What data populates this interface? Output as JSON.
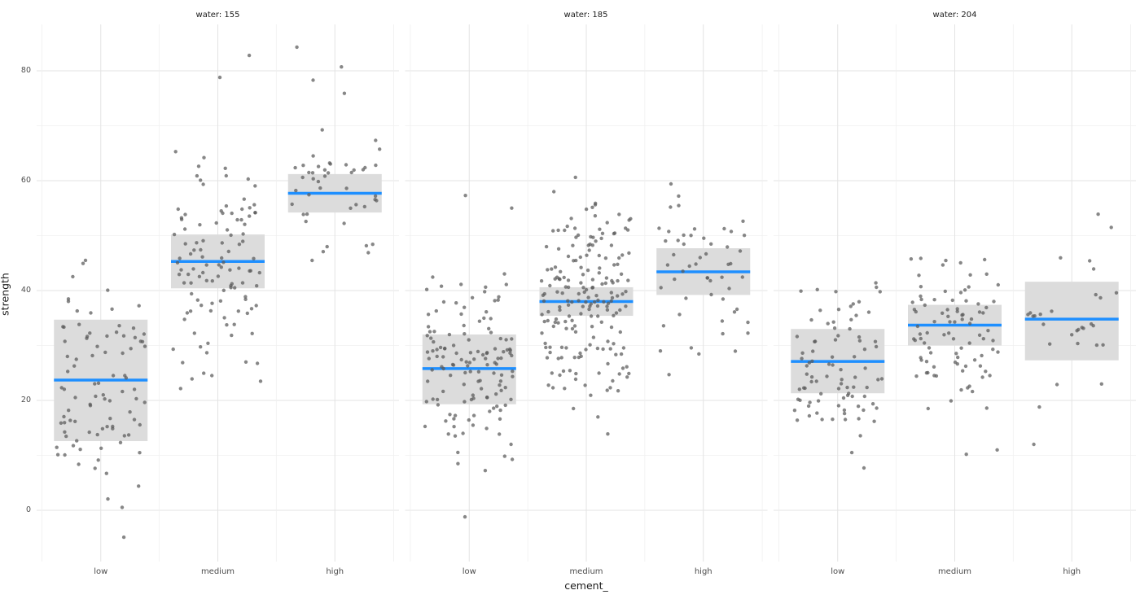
{
  "chart_data": {
    "type": "scatter",
    "subtype": "jittered points with crossbar summary bands, faceted",
    "title": "",
    "facet_variable": "water",
    "x": {
      "label": "cement_",
      "categories": [
        "low",
        "medium",
        "high"
      ]
    },
    "y": {
      "label": "strength",
      "ticks": [
        0,
        20,
        40,
        60,
        80
      ],
      "minor_ticks": [
        10,
        30,
        50,
        70
      ],
      "range": [
        -9.33,
        88.44
      ]
    },
    "grid": "major and minor, light gray on white",
    "legend": "none",
    "colors": {
      "background": "#ffffff",
      "grid_major": "#e3e3e3",
      "grid_minor": "#f0f0f0",
      "band_fill": "#dcdcdc",
      "mean_line": "#1e8fff",
      "point": "#595959",
      "tick_text": "#4d4d4d",
      "title_text": "#1a1a1a"
    },
    "facets": [
      {
        "label": "water: 155",
        "groups": [
          {
            "category": "low",
            "n": 88,
            "mean": 23.7,
            "sd": 10.5,
            "clip": [
              -5.2,
              45.7
            ],
            "extras": [
              -4.9,
              4.4,
              45.5
            ],
            "band": {
              "lower": 12.6,
              "mid": 23.7,
              "upper": 34.7
            },
            "seed": 11
          },
          {
            "category": "medium",
            "n": 110,
            "mean": 45.3,
            "sd": 10.0,
            "clip": [
              21.5,
              66.0
            ],
            "extras": [
              82.8,
              78.8
            ],
            "band": {
              "lower": 40.4,
              "mid": 45.3,
              "upper": 50.2
            },
            "seed": 22
          },
          {
            "category": "high",
            "n": 44,
            "mean": 57.7,
            "sd": 7.0,
            "clip": [
              45.0,
              70.5
            ],
            "extras": [
              84.3,
              80.7,
              78.3,
              75.9
            ],
            "band": {
              "lower": 54.2,
              "mid": 57.7,
              "upper": 61.2
            },
            "seed": 33
          }
        ]
      },
      {
        "label": "water: 185",
        "groups": [
          {
            "category": "low",
            "n": 132,
            "mean": 25.8,
            "sd": 9.0,
            "clip": [
              -1.5,
              48.0
            ],
            "extras": [
              57.3,
              55.0,
              -1.2
            ],
            "band": {
              "lower": 19.3,
              "mid": 25.8,
              "upper": 32.0
            },
            "seed": 44
          },
          {
            "category": "medium",
            "n": 188,
            "mean": 38.0,
            "sd": 9.5,
            "clip": [
              16.0,
              57.0
            ],
            "extras": [
              60.6,
              58.0,
              13.9
            ],
            "band": {
              "lower": 35.4,
              "mid": 38.0,
              "upper": 40.6
            },
            "seed": 55
          },
          {
            "category": "high",
            "n": 50,
            "mean": 43.4,
            "sd": 7.5,
            "clip": [
              27.0,
              56.0
            ],
            "extras": [
              59.4,
              57.2,
              24.7
            ],
            "band": {
              "lower": 39.2,
              "mid": 43.4,
              "upper": 47.7
            },
            "seed": 66
          }
        ]
      },
      {
        "label": "water: 204",
        "groups": [
          {
            "category": "low",
            "n": 86,
            "mean": 27.1,
            "sd": 7.5,
            "clip": [
              13.0,
              43.5
            ],
            "extras": [
              7.7,
              10.5
            ],
            "band": {
              "lower": 21.3,
              "mid": 27.1,
              "upper": 33.0
            },
            "seed": 77
          },
          {
            "category": "medium",
            "n": 90,
            "mean": 33.7,
            "sd": 7.5,
            "clip": [
              16.0,
              46.0
            ],
            "extras": [
              11.0,
              10.2
            ],
            "band": {
              "lower": 30.0,
              "mid": 33.7,
              "upper": 37.4
            },
            "seed": 88
          },
          {
            "category": "high",
            "n": 26,
            "mean": 34.8,
            "sd": 7.0,
            "clip": [
              21.0,
              46.0
            ],
            "extras": [
              53.9,
              51.5,
              18.8,
              12.0
            ],
            "band": {
              "lower": 27.3,
              "mid": 34.8,
              "upper": 41.6
            },
            "seed": 99
          }
        ]
      }
    ]
  }
}
